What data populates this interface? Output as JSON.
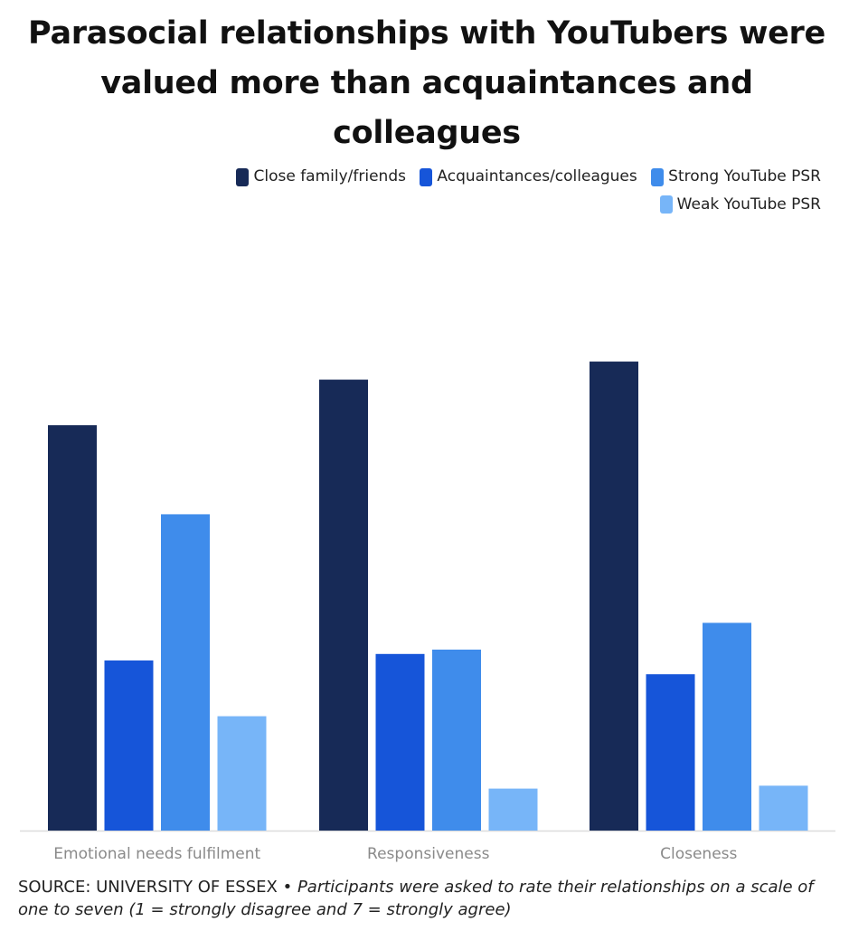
{
  "chart_data": {
    "type": "bar",
    "title": "Parasocial relationships with YouTubers were valued more than acquaintances and colleagues",
    "categories": [
      "Emotional needs fulfilment",
      "Responsiveness",
      "Closeness"
    ],
    "series": [
      {
        "name": "Close family/friends",
        "color": "#172a57",
        "values": [
          5.6,
          6.23,
          6.48
        ]
      },
      {
        "name": "Acquaintances/colleagues",
        "color": "#1655d9",
        "values": [
          2.35,
          2.44,
          2.16
        ]
      },
      {
        "name": "Strong YouTube PSR",
        "color": "#3f8ceb",
        "values": [
          4.37,
          2.5,
          2.87
        ]
      },
      {
        "name": "Weak YouTube PSR",
        "color": "#77b5f8",
        "values": [
          1.58,
          0.58,
          0.62
        ]
      }
    ],
    "ylim": [
      0,
      7
    ],
    "xlabel": "",
    "ylabel": "",
    "legend_position": "top-right",
    "grid": false
  },
  "footer": {
    "source": "SOURCE: UNIVERSITY OF ESSEX •",
    "note": "Participants were asked to rate their relationships on a scale of one to seven (1 = strongly disagree and 7 = strongly agree)"
  }
}
